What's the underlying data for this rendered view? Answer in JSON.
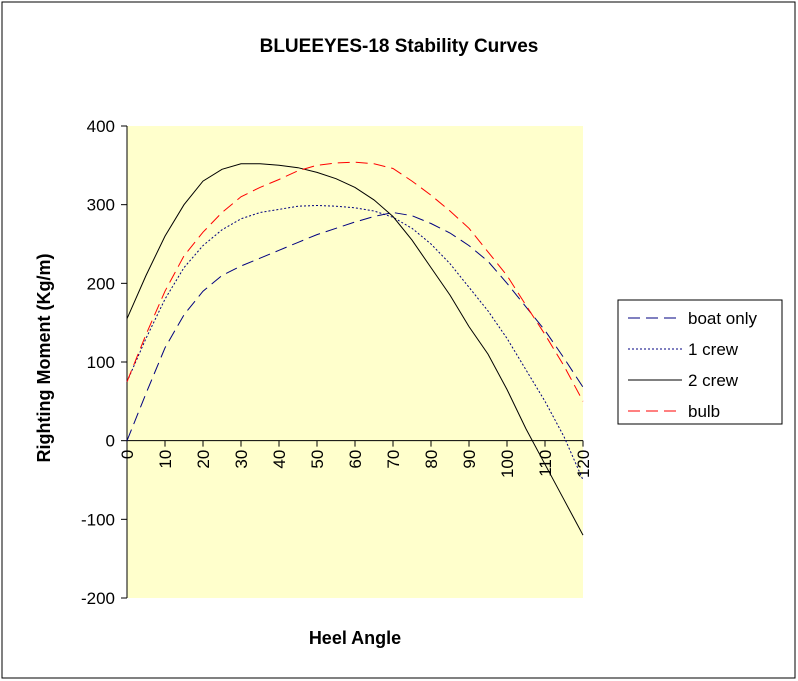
{
  "chart_data": {
    "type": "line",
    "title": "BLUEEYES-18 Stability Curves",
    "xlabel": "Heel Angle",
    "ylabel": "Righting Moment (Kg/m)",
    "xlim": [
      0,
      120
    ],
    "ylim": [
      -200,
      400
    ],
    "x_ticks": [
      "0",
      "10",
      "20",
      "30",
      "40",
      "50",
      "60",
      "70",
      "80",
      "90",
      "100",
      "110",
      "120"
    ],
    "y_ticks": [
      "400",
      "300",
      "200",
      "100",
      "0",
      "-100",
      "-200"
    ],
    "grid": false,
    "legend_position": "right",
    "plot_background": "#ffffcc",
    "series": [
      {
        "name": "boat only",
        "color": "#000080",
        "dash": "long-dash",
        "x": [
          0,
          5,
          10,
          15,
          20,
          25,
          30,
          35,
          40,
          45,
          50,
          55,
          60,
          65,
          70,
          75,
          80,
          85,
          90,
          95,
          100,
          105,
          110,
          115,
          120
        ],
        "y": [
          0,
          60,
          118,
          160,
          190,
          210,
          222,
          232,
          242,
          252,
          262,
          270,
          278,
          285,
          290,
          286,
          276,
          264,
          248,
          228,
          200,
          170,
          140,
          105,
          68
        ]
      },
      {
        "name": "1 crew",
        "color": "#000080",
        "dash": "dotted",
        "x": [
          0,
          5,
          10,
          15,
          20,
          25,
          30,
          35,
          40,
          45,
          50,
          55,
          60,
          65,
          70,
          75,
          80,
          85,
          90,
          95,
          100,
          105,
          110,
          115,
          120
        ],
        "y": [
          75,
          130,
          180,
          220,
          248,
          268,
          282,
          290,
          294,
          298,
          299,
          298,
          296,
          292,
          284,
          270,
          250,
          225,
          195,
          165,
          130,
          90,
          50,
          5,
          -50
        ]
      },
      {
        "name": "2 crew",
        "color": "#000000",
        "dash": "solid",
        "x": [
          0,
          5,
          10,
          15,
          20,
          25,
          30,
          35,
          40,
          45,
          50,
          55,
          60,
          65,
          70,
          75,
          80,
          85,
          90,
          95,
          100,
          105,
          110,
          115,
          120
        ],
        "y": [
          155,
          210,
          260,
          300,
          330,
          345,
          352,
          352,
          350,
          347,
          341,
          333,
          322,
          306,
          285,
          255,
          220,
          185,
          145,
          110,
          65,
          15,
          -30,
          -75,
          -120
        ]
      },
      {
        "name": "bulb",
        "color": "#ff0000",
        "dash": "long-dash",
        "x": [
          0,
          5,
          10,
          15,
          20,
          25,
          30,
          35,
          40,
          45,
          50,
          55,
          60,
          65,
          70,
          75,
          80,
          85,
          90,
          95,
          100,
          105,
          110,
          115,
          120
        ],
        "y": [
          75,
          135,
          190,
          235,
          265,
          290,
          310,
          322,
          332,
          343,
          350,
          353,
          354,
          352,
          346,
          330,
          312,
          292,
          270,
          240,
          210,
          172,
          135,
          95,
          50
        ]
      }
    ]
  }
}
